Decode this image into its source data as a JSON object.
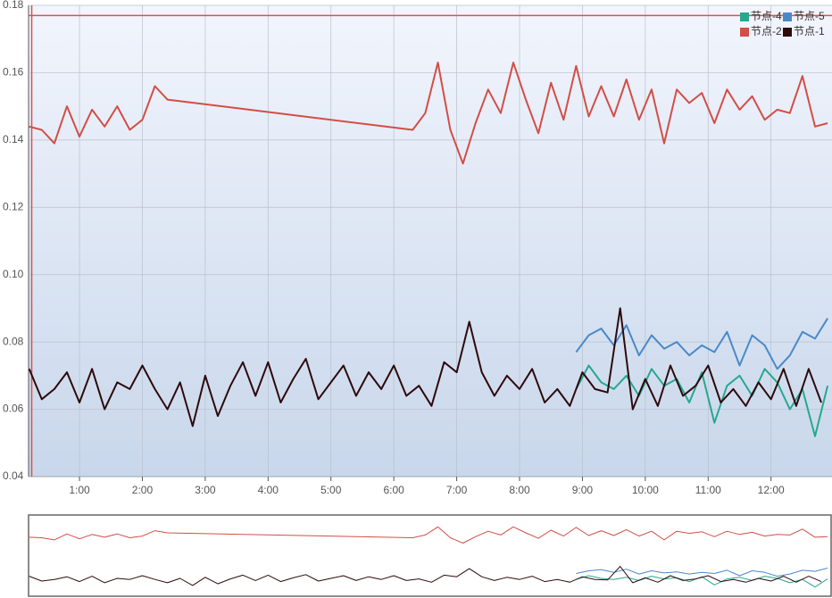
{
  "chart_data": {
    "type": "line",
    "xlim": [
      0.19,
      12.97
    ],
    "ylim": [
      0.04,
      0.18
    ],
    "xticks": [
      {
        "value": 1,
        "label": "1:00"
      },
      {
        "value": 2,
        "label": "2:00"
      },
      {
        "value": 3,
        "label": "3:00"
      },
      {
        "value": 4,
        "label": "4:00"
      },
      {
        "value": 5,
        "label": "5:00"
      },
      {
        "value": 6,
        "label": "6:00"
      },
      {
        "value": 7,
        "label": "7:00"
      },
      {
        "value": 8,
        "label": "8:00"
      },
      {
        "value": 9,
        "label": "9:00"
      },
      {
        "value": 10,
        "label": "10:00"
      },
      {
        "value": 11,
        "label": "11:00"
      },
      {
        "value": 12,
        "label": "12:00"
      }
    ],
    "yticks": [
      0.04,
      0.06,
      0.08,
      {
        "value": 0.1,
        "label": "0.10"
      },
      0.12,
      0.14,
      0.16,
      0.18
    ],
    "grid": true,
    "reference_lines": {
      "y": 0.177,
      "x": 0.24,
      "color": "#d9534f"
    },
    "series": [
      {
        "name": "节点-4",
        "color": "#26a88e",
        "x": [
          8.9,
          9.1,
          9.3,
          9.5,
          9.7,
          9.9,
          10.1,
          10.3,
          10.5,
          10.7,
          10.9,
          11.1,
          11.3,
          11.5,
          11.7,
          11.9,
          12.1,
          12.3,
          12.5,
          12.7,
          12.9
        ],
        "values": [
          0.066,
          0.073,
          0.068,
          0.066,
          0.07,
          0.064,
          0.072,
          0.067,
          0.069,
          0.062,
          0.071,
          0.056,
          0.067,
          0.07,
          0.064,
          0.072,
          0.068,
          0.06,
          0.066,
          0.052,
          0.067
        ]
      },
      {
        "name": "节点-5",
        "color": "#4a89c8",
        "x": [
          8.9,
          9.1,
          9.3,
          9.5,
          9.7,
          9.9,
          10.1,
          10.3,
          10.5,
          10.7,
          10.9,
          11.1,
          11.3,
          11.5,
          11.7,
          11.9,
          12.1,
          12.3,
          12.5,
          12.7,
          12.9
        ],
        "values": [
          0.077,
          0.082,
          0.084,
          0.079,
          0.085,
          0.076,
          0.082,
          0.078,
          0.08,
          0.076,
          0.079,
          0.077,
          0.083,
          0.073,
          0.082,
          0.079,
          0.072,
          0.076,
          0.083,
          0.081,
          0.087
        ]
      },
      {
        "name": "节点-2",
        "color": "#d24e47",
        "x": [
          0.2,
          0.4,
          0.6,
          0.8,
          1.0,
          1.2,
          1.4,
          1.6,
          1.8,
          2.0,
          2.2,
          2.4,
          6.3,
          6.5,
          6.7,
          6.9,
          7.1,
          7.3,
          7.5,
          7.7,
          7.9,
          8.1,
          8.3,
          8.5,
          8.7,
          8.9,
          9.1,
          9.3,
          9.5,
          9.7,
          9.9,
          10.1,
          10.3,
          10.5,
          10.7,
          10.9,
          11.1,
          11.3,
          11.5,
          11.7,
          11.9,
          12.1,
          12.3,
          12.5,
          12.7,
          12.9
        ],
        "values": [
          0.144,
          0.143,
          0.139,
          0.15,
          0.141,
          0.149,
          0.144,
          0.15,
          0.143,
          0.146,
          0.156,
          0.152,
          0.143,
          0.148,
          0.163,
          0.143,
          0.133,
          0.145,
          0.155,
          0.148,
          0.163,
          0.152,
          0.142,
          0.157,
          0.146,
          0.162,
          0.147,
          0.156,
          0.147,
          0.158,
          0.146,
          0.155,
          0.139,
          0.155,
          0.151,
          0.154,
          0.145,
          0.155,
          0.149,
          0.153,
          0.146,
          0.149,
          0.148,
          0.159,
          0.144,
          0.145
        ]
      },
      {
        "name": "节点-1",
        "color": "#2e0a0c",
        "x": [
          0.2,
          0.4,
          0.6,
          0.8,
          1.0,
          1.2,
          1.4,
          1.6,
          1.8,
          2.0,
          2.2,
          2.4,
          2.6,
          2.8,
          3.0,
          3.2,
          3.4,
          3.6,
          3.8,
          4.0,
          4.2,
          4.4,
          4.6,
          4.8,
          5.0,
          5.2,
          5.4,
          5.6,
          5.8,
          6.0,
          6.2,
          6.4,
          6.6,
          6.8,
          7.0,
          7.2,
          7.4,
          7.6,
          7.8,
          8.0,
          8.2,
          8.4,
          8.6,
          8.8,
          9.0,
          9.2,
          9.4,
          9.6,
          9.8,
          10.0,
          10.2,
          10.4,
          10.6,
          10.8,
          11.0,
          11.2,
          11.4,
          11.6,
          11.8,
          12.0,
          12.2,
          12.4,
          12.6,
          12.8
        ],
        "values": [
          0.072,
          0.063,
          0.066,
          0.071,
          0.062,
          0.072,
          0.06,
          0.068,
          0.066,
          0.073,
          0.066,
          0.06,
          0.068,
          0.055,
          0.07,
          0.058,
          0.067,
          0.074,
          0.064,
          0.074,
          0.062,
          0.069,
          0.075,
          0.063,
          0.068,
          0.073,
          0.064,
          0.071,
          0.066,
          0.073,
          0.064,
          0.067,
          0.061,
          0.074,
          0.071,
          0.086,
          0.071,
          0.064,
          0.07,
          0.066,
          0.072,
          0.062,
          0.066,
          0.061,
          0.071,
          0.066,
          0.065,
          0.09,
          0.06,
          0.069,
          0.061,
          0.073,
          0.064,
          0.067,
          0.073,
          0.062,
          0.066,
          0.061,
          0.068,
          0.063,
          0.072,
          0.061,
          0.072,
          0.062
        ]
      }
    ]
  }
}
